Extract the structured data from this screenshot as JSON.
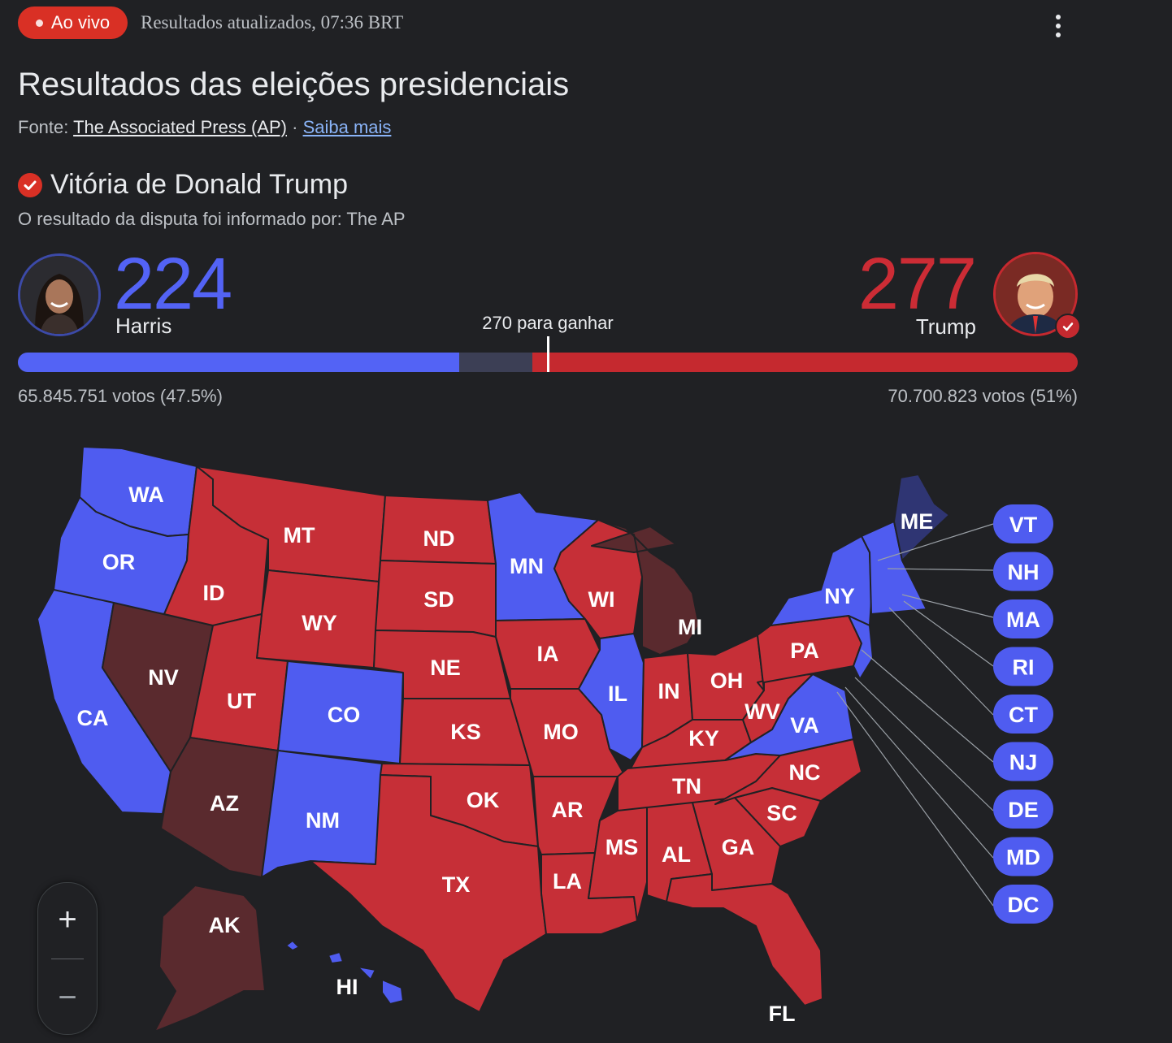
{
  "header": {
    "live_label": "Ao vivo",
    "updated": "Resultados atualizados, 07:36 BRT",
    "menu_icon": "more-vert-icon"
  },
  "title": "Resultados das eleições presidenciais",
  "source": {
    "prefix": "Fonte:",
    "link": "The Associated Press (AP)",
    "separator": "·",
    "more": "Saiba mais"
  },
  "result": {
    "headline": "Vitória de Donald Trump",
    "reported": "O resultado da disputa foi informado por: The AP"
  },
  "candidates": {
    "harris": {
      "name": "Harris",
      "electoral_votes": "224",
      "votes": "65.845.751 votos (47.5%)",
      "color": "#5363f5"
    },
    "trump": {
      "name": "Trump",
      "electoral_votes": "277",
      "votes": "70.700.823 votos (51%)",
      "color": "#c5292f"
    }
  },
  "threshold": {
    "label": "270 para ganhar",
    "value": 270,
    "total": 538
  },
  "colors": {
    "harris": "#4f5cf0",
    "trump": "#c62f37",
    "trump_flipped": "#5a2a2e",
    "harris_held_dark": "#2f3573",
    "background": "#202124"
  },
  "map": {
    "states": [
      {
        "code": "WA",
        "winner": "harris"
      },
      {
        "code": "OR",
        "winner": "harris"
      },
      {
        "code": "CA",
        "winner": "harris"
      },
      {
        "code": "NV",
        "winner": "trump_flipped"
      },
      {
        "code": "ID",
        "winner": "trump"
      },
      {
        "code": "MT",
        "winner": "trump"
      },
      {
        "code": "WY",
        "winner": "trump"
      },
      {
        "code": "UT",
        "winner": "trump"
      },
      {
        "code": "CO",
        "winner": "harris"
      },
      {
        "code": "AZ",
        "winner": "trump_flipped"
      },
      {
        "code": "NM",
        "winner": "harris"
      },
      {
        "code": "ND",
        "winner": "trump"
      },
      {
        "code": "SD",
        "winner": "trump"
      },
      {
        "code": "NE",
        "winner": "trump"
      },
      {
        "code": "KS",
        "winner": "trump"
      },
      {
        "code": "OK",
        "winner": "trump"
      },
      {
        "code": "TX",
        "winner": "trump"
      },
      {
        "code": "MN",
        "winner": "harris"
      },
      {
        "code": "IA",
        "winner": "trump"
      },
      {
        "code": "MO",
        "winner": "trump"
      },
      {
        "code": "AR",
        "winner": "trump"
      },
      {
        "code": "LA",
        "winner": "trump"
      },
      {
        "code": "WI",
        "winner": "trump"
      },
      {
        "code": "IL",
        "winner": "harris"
      },
      {
        "code": "MI",
        "winner": "trump_flipped"
      },
      {
        "code": "IN",
        "winner": "trump"
      },
      {
        "code": "OH",
        "winner": "trump"
      },
      {
        "code": "KY",
        "winner": "trump"
      },
      {
        "code": "TN",
        "winner": "trump"
      },
      {
        "code": "MS",
        "winner": "trump"
      },
      {
        "code": "AL",
        "winner": "trump"
      },
      {
        "code": "GA",
        "winner": "trump"
      },
      {
        "code": "FL",
        "winner": "trump"
      },
      {
        "code": "SC",
        "winner": "trump"
      },
      {
        "code": "NC",
        "winner": "trump"
      },
      {
        "code": "VA",
        "winner": "harris"
      },
      {
        "code": "WV",
        "winner": "trump"
      },
      {
        "code": "PA",
        "winner": "trump"
      },
      {
        "code": "NY",
        "winner": "harris"
      },
      {
        "code": "ME",
        "winner": "harris_held_dark"
      },
      {
        "code": "AK",
        "winner": "trump_flipped"
      },
      {
        "code": "HI",
        "winner": "harris"
      }
    ],
    "small_states": [
      "VT",
      "NH",
      "MA",
      "RI",
      "CT",
      "NJ",
      "DE",
      "MD",
      "DC"
    ]
  },
  "zoom": {
    "in": "+",
    "out": "−"
  }
}
